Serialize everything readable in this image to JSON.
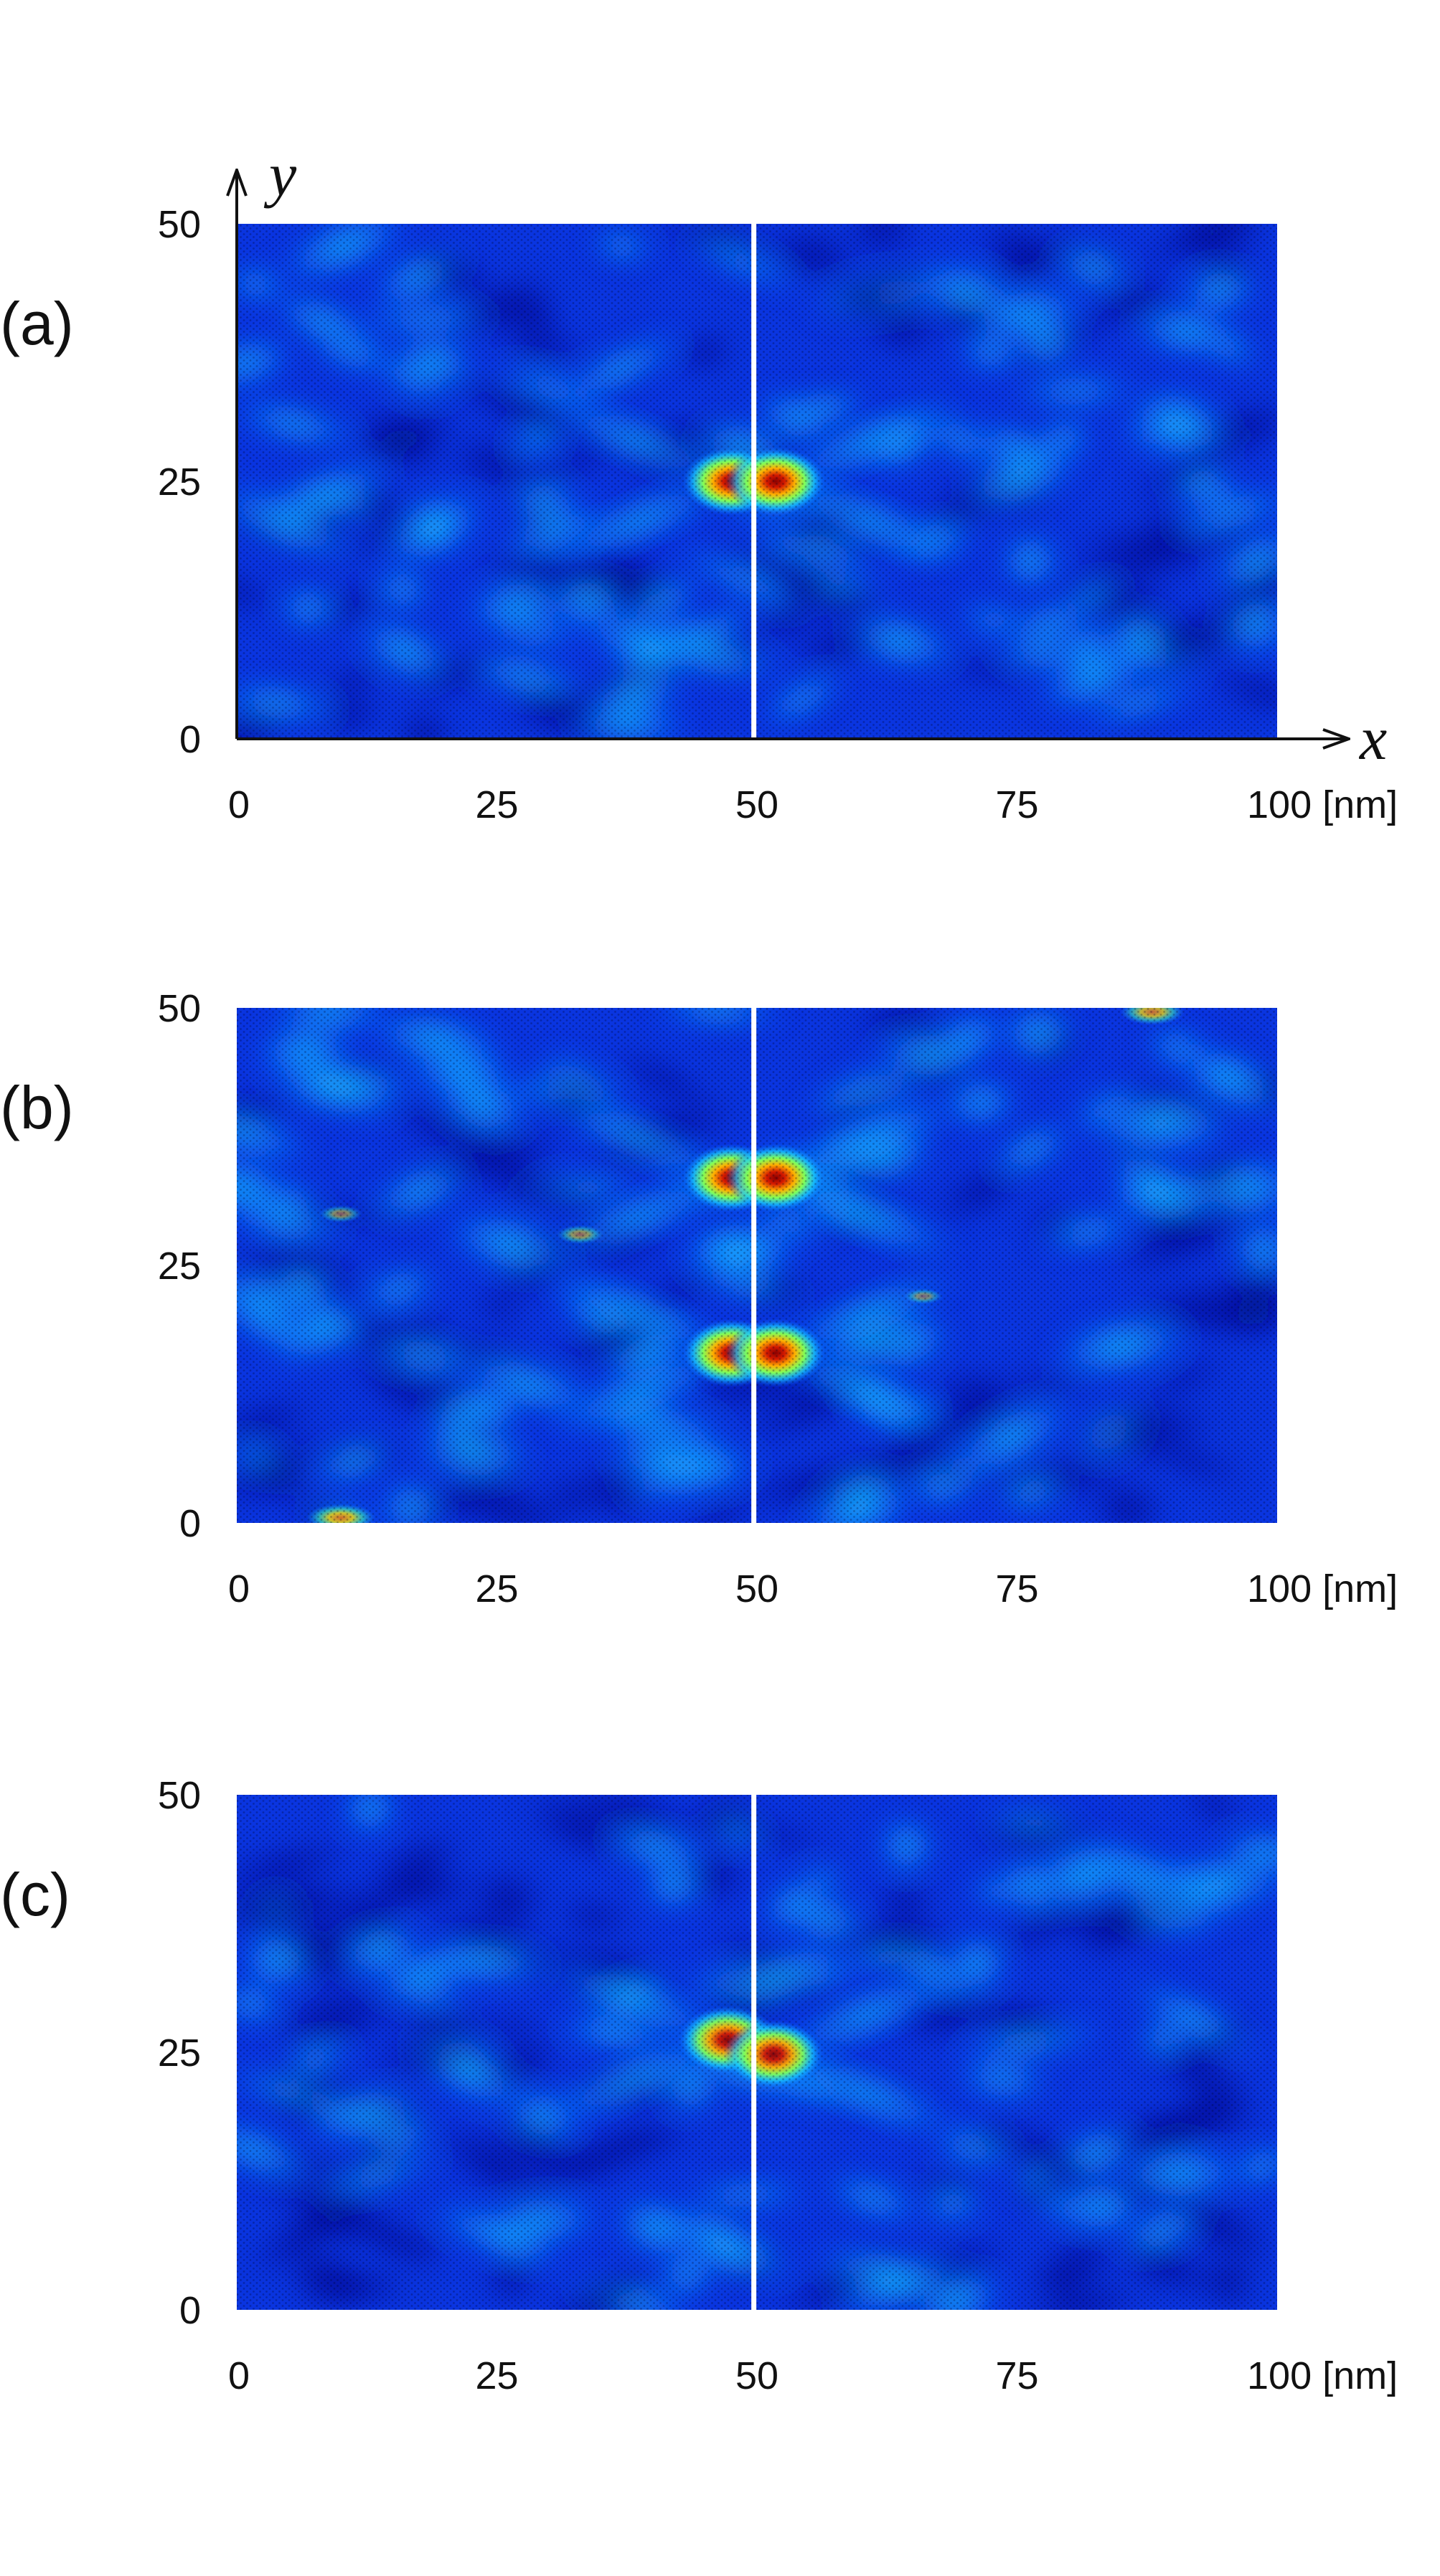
{
  "chart_data": [
    {
      "type": "heatmap",
      "panel_label": "(a)",
      "x_axis_letter": "x",
      "y_axis_letter": "y",
      "xlim": [
        0,
        100
      ],
      "ylim": [
        0,
        50
      ],
      "x_ticks": [
        "0",
        "25",
        "50",
        "75",
        "100 [nm]"
      ],
      "x_tick_values": [
        0,
        25,
        50,
        75,
        100
      ],
      "y_ticks": [
        "0",
        "25",
        "50"
      ],
      "y_tick_values": [
        0,
        25,
        50
      ],
      "crack_x": 49.7,
      "hotspots": [
        {
          "x": 47.6,
          "y": 25,
          "intensity": 1.0
        },
        {
          "x": 51.8,
          "y": 25,
          "intensity": 1.0
        }
      ],
      "secondary_spots": []
    },
    {
      "type": "heatmap",
      "panel_label": "(b)",
      "xlim": [
        0,
        100
      ],
      "ylim": [
        0,
        50
      ],
      "x_ticks": [
        "0",
        "25",
        "50",
        "75",
        "100 [nm]"
      ],
      "x_tick_values": [
        0,
        25,
        50,
        75,
        100
      ],
      "y_ticks": [
        "0",
        "25",
        "50"
      ],
      "y_tick_values": [
        0,
        25,
        50
      ],
      "crack_x": 49.7,
      "hotspots": [
        {
          "x": 47.6,
          "y": 33.5,
          "intensity": 1.0
        },
        {
          "x": 51.8,
          "y": 33.5,
          "intensity": 1.0
        },
        {
          "x": 47.6,
          "y": 16.5,
          "intensity": 1.0
        },
        {
          "x": 51.8,
          "y": 16.5,
          "intensity": 1.0
        }
      ],
      "secondary_spots": [
        {
          "x": 10,
          "y": 0.5,
          "intensity": 0.8
        },
        {
          "x": 88,
          "y": 49.6,
          "intensity": 0.75
        },
        {
          "x": 33,
          "y": 28,
          "intensity": 0.55
        },
        {
          "x": 10,
          "y": 30,
          "intensity": 0.5
        },
        {
          "x": 66,
          "y": 22,
          "intensity": 0.45
        }
      ]
    },
    {
      "type": "heatmap",
      "panel_label": "(c)",
      "xlim": [
        0,
        100
      ],
      "ylim": [
        0,
        50
      ],
      "x_ticks": [
        "0",
        "25",
        "50",
        "75",
        "100 [nm]"
      ],
      "x_tick_values": [
        0,
        25,
        50,
        75,
        100
      ],
      "y_ticks": [
        "0",
        "25",
        "50"
      ],
      "y_tick_values": [
        0,
        25,
        50
      ],
      "crack_x": 49.7,
      "hotspots": [
        {
          "x": 47.2,
          "y": 26.2,
          "intensity": 0.95
        },
        {
          "x": 51.6,
          "y": 24.8,
          "intensity": 0.95
        }
      ],
      "secondary_spots": []
    }
  ]
}
